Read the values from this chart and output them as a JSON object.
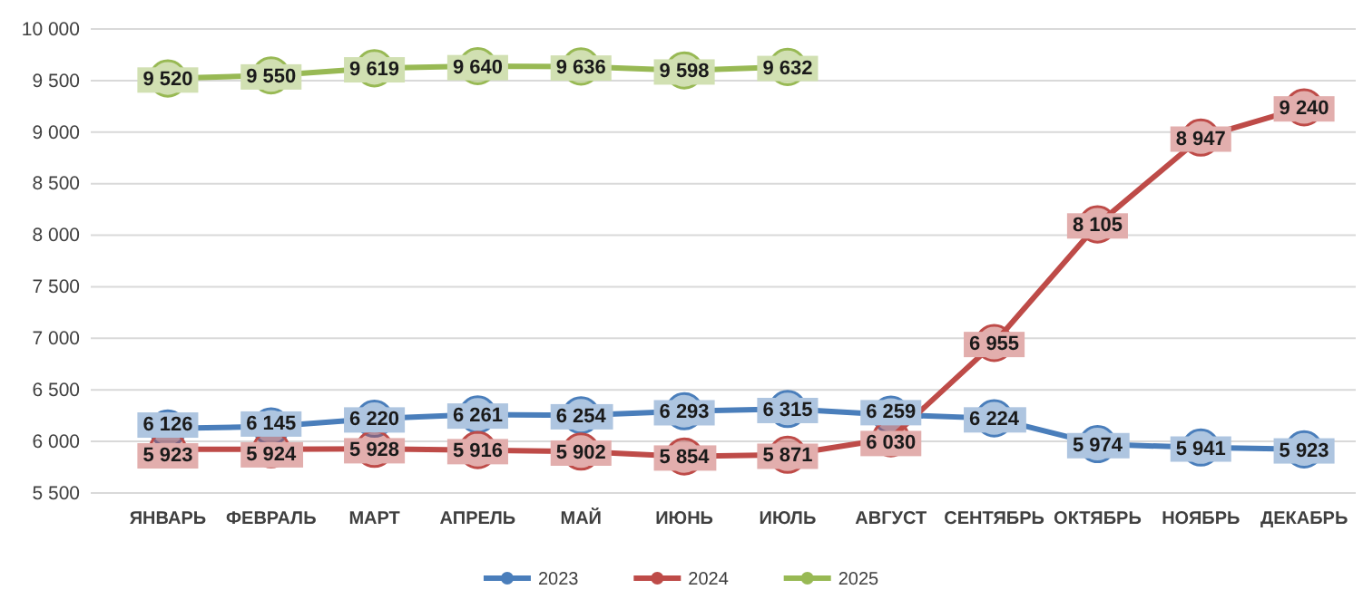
{
  "chart_data": {
    "type": "line",
    "categories": [
      "ЯНВАРЬ",
      "ФЕВРАЛЬ",
      "МАРТ",
      "АПРЕЛЬ",
      "МАЙ",
      "ИЮНЬ",
      "ИЮЛЬ",
      "АВГУСТ",
      "СЕНТЯБРЬ",
      "ОКТЯБРЬ",
      "НОЯБРЬ",
      "ДЕКАБРЬ"
    ],
    "series": [
      {
        "name": "2023",
        "color": "#4a7ebb",
        "values": [
          6126,
          6145,
          6220,
          6261,
          6254,
          6293,
          6315,
          6259,
          6224,
          5974,
          5941,
          5923
        ],
        "value_labels": [
          "6 126",
          "6 145",
          "6 220",
          "6 261",
          "6 254",
          "6 293",
          "6 315",
          "6 259",
          "6 224",
          "5 974",
          "5 941",
          "5 923"
        ]
      },
      {
        "name": "2024",
        "color": "#be4b48",
        "values": [
          5923,
          5924,
          5928,
          5916,
          5902,
          5854,
          5871,
          6030,
          6955,
          8105,
          8947,
          9240
        ],
        "value_labels": [
          "5 923",
          "5 924",
          "5 928",
          "5 916",
          "5 902",
          "5 854",
          "5 871",
          "6 030",
          "6 955",
          "8 105",
          "8 947",
          "9 240"
        ]
      },
      {
        "name": "2025",
        "color": "#98b954",
        "values": [
          9520,
          9550,
          9619,
          9640,
          9636,
          9598,
          9632,
          null,
          null,
          null,
          null,
          null
        ],
        "value_labels": [
          "9 520",
          "9 550",
          "9 619",
          "9 640",
          "9 636",
          "9 598",
          "9 632",
          null,
          null,
          null,
          null,
          null
        ]
      }
    ],
    "ylim": [
      5500,
      10000
    ],
    "yticks": [
      {
        "value": 5500,
        "label": "5 500"
      },
      {
        "value": 6000,
        "label": "6 000"
      },
      {
        "value": 6500,
        "label": "6 500"
      },
      {
        "value": 7000,
        "label": "7 000"
      },
      {
        "value": 7500,
        "label": "7 500"
      },
      {
        "value": 8000,
        "label": "8 000"
      },
      {
        "value": 8500,
        "label": "8 500"
      },
      {
        "value": 9000,
        "label": "9 000"
      },
      {
        "value": 9500,
        "label": "9 500"
      },
      {
        "value": 10000,
        "label": "10 000"
      }
    ],
    "grid": "y",
    "legend": "bottom",
    "marker": "circle",
    "line_style": "solid"
  }
}
